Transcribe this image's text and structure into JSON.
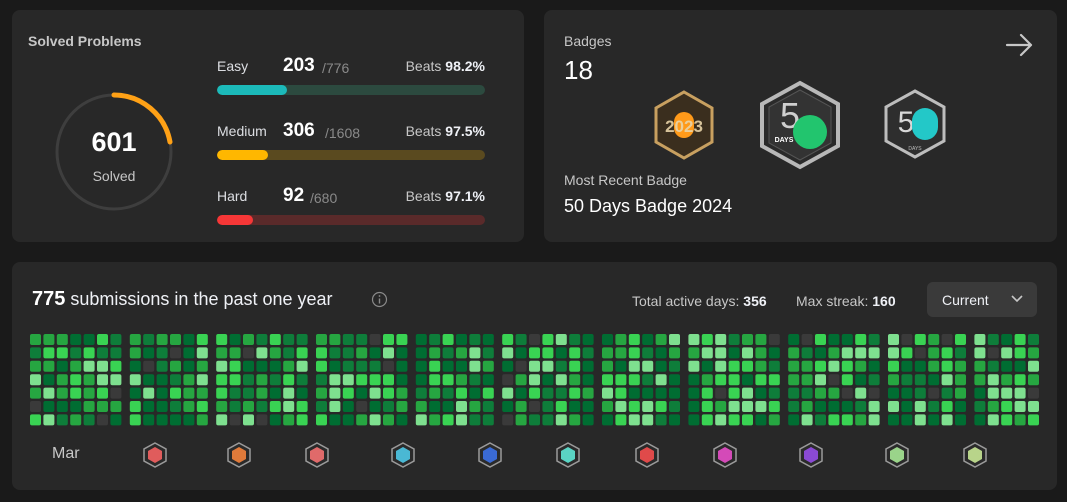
{
  "solved": {
    "title": "Solved Problems",
    "count": "601",
    "label": "Solved",
    "difficulties": [
      {
        "name": "Easy",
        "solved": "203",
        "total": "/776",
        "beats_label": "Beats",
        "beats": "98.2%",
        "fraction": 0.262,
        "color": "#1cbaba",
        "track": "#2c4a3f"
      },
      {
        "name": "Medium",
        "solved": "306",
        "total": "/1608",
        "beats_label": "Beats",
        "beats": "97.5%",
        "fraction": 0.19,
        "color": "#ffb700",
        "track": "#5a4a1f"
      },
      {
        "name": "Hard",
        "solved": "92",
        "total": "/680",
        "beats_label": "Beats",
        "beats": "97.1%",
        "fraction": 0.135,
        "color": "#f63737",
        "track": "#5a2a2a"
      }
    ]
  },
  "badges": {
    "title": "Badges",
    "count": "18",
    "recent_label": "Most Recent Badge",
    "recent_name": "50 Days Badge 2024",
    "images": [
      {
        "name": "2023-annual-badge",
        "text": "2023"
      },
      {
        "name": "50-days-badge-2024",
        "text": "DAYS"
      },
      {
        "name": "50-days-badge-2023",
        "text": "DAYS"
      }
    ]
  },
  "submissions": {
    "count": "775",
    "text": "submissions in the past one year",
    "active_days_label": "Total active days:",
    "active_days": "356",
    "max_streak_label": "Max streak:",
    "max_streak": "160",
    "dropdown": "Current",
    "first_month": "Mar",
    "month_badge_colors": [
      "#e05c5c",
      "#e07a3a",
      "#e06a6a",
      "#4ab8d4",
      "#3a6ad4",
      "#5ad4c4",
      "#e04a4a",
      "#d44ab8",
      "#8a4ad4",
      "#9ad48a",
      "#b8d48a"
    ]
  }
}
